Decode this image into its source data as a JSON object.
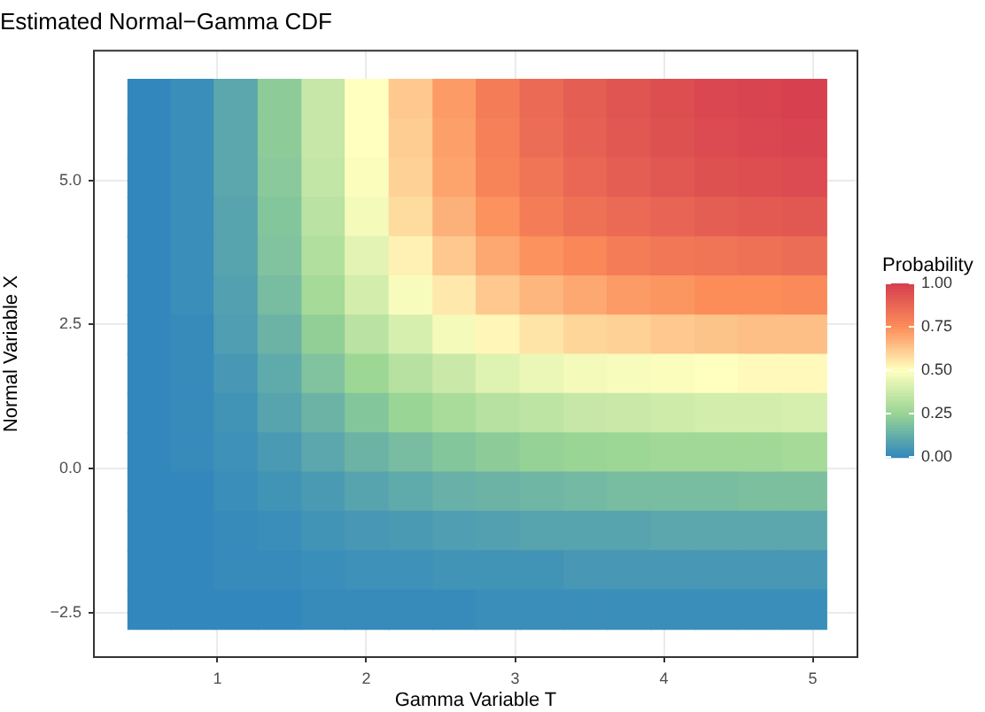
{
  "chart_data": {
    "type": "heatmap",
    "title": "Estimated Normal−Gamma CDF",
    "xlabel": "Gamma Variable T",
    "ylabel": "Normal Variable X",
    "clabel": "Probability",
    "x": [
      0.54,
      0.83,
      1.12,
      1.42,
      1.71,
      2.0,
      2.3,
      2.59,
      2.88,
      3.18,
      3.47,
      3.76,
      4.06,
      4.35,
      4.64,
      4.94
    ],
    "y": [
      6.42,
      5.74,
      5.06,
      4.37,
      3.69,
      3.01,
      2.33,
      1.65,
      0.97,
      0.29,
      -0.39,
      -1.07,
      -1.76,
      -2.44
    ],
    "cells": [
      [
        0,
        0.02,
        0.1,
        0.22,
        0.36,
        0.5,
        0.62,
        0.72,
        0.8,
        0.86,
        0.9,
        0.93,
        0.95,
        0.97,
        0.98,
        0.99
      ],
      [
        0,
        0.02,
        0.1,
        0.22,
        0.36,
        0.5,
        0.61,
        0.71,
        0.79,
        0.85,
        0.89,
        0.92,
        0.94,
        0.96,
        0.97,
        0.98
      ],
      [
        0,
        0.02,
        0.1,
        0.21,
        0.35,
        0.49,
        0.6,
        0.7,
        0.78,
        0.83,
        0.87,
        0.9,
        0.92,
        0.94,
        0.95,
        0.96
      ],
      [
        0,
        0.02,
        0.09,
        0.2,
        0.33,
        0.47,
        0.58,
        0.67,
        0.74,
        0.8,
        0.84,
        0.86,
        0.88,
        0.9,
        0.91,
        0.92
      ],
      [
        0,
        0.02,
        0.09,
        0.19,
        0.31,
        0.43,
        0.53,
        0.62,
        0.69,
        0.74,
        0.77,
        0.8,
        0.82,
        0.83,
        0.84,
        0.85
      ],
      [
        0,
        0.02,
        0.08,
        0.17,
        0.28,
        0.39,
        0.48,
        0.55,
        0.62,
        0.66,
        0.69,
        0.72,
        0.73,
        0.75,
        0.75,
        0.76
      ],
      [
        0,
        0.01,
        0.07,
        0.14,
        0.23,
        0.33,
        0.4,
        0.47,
        0.52,
        0.56,
        0.59,
        0.6,
        0.62,
        0.63,
        0.64,
        0.64
      ],
      [
        0,
        0.01,
        0.05,
        0.11,
        0.19,
        0.26,
        0.32,
        0.37,
        0.42,
        0.45,
        0.47,
        0.48,
        0.49,
        0.5,
        0.51,
        0.51
      ],
      [
        0,
        0.01,
        0.04,
        0.09,
        0.14,
        0.2,
        0.25,
        0.29,
        0.32,
        0.34,
        0.36,
        0.37,
        0.38,
        0.39,
        0.39,
        0.4
      ],
      [
        0,
        0.01,
        0.03,
        0.06,
        0.1,
        0.14,
        0.17,
        0.2,
        0.22,
        0.24,
        0.25,
        0.26,
        0.27,
        0.27,
        0.27,
        0.28
      ],
      [
        0,
        0,
        0.02,
        0.04,
        0.06,
        0.09,
        0.11,
        0.13,
        0.14,
        0.15,
        0.16,
        0.17,
        0.17,
        0.17,
        0.18,
        0.18
      ],
      [
        0,
        0,
        0.01,
        0.02,
        0.04,
        0.05,
        0.06,
        0.07,
        0.08,
        0.09,
        0.09,
        0.09,
        0.1,
        0.1,
        0.1,
        0.1
      ],
      [
        0,
        0,
        0.01,
        0.01,
        0.02,
        0.03,
        0.03,
        0.04,
        0.04,
        0.04,
        0.05,
        0.05,
        0.05,
        0.05,
        0.05,
        0.05
      ],
      [
        0,
        0,
        0,
        0,
        0.01,
        0.01,
        0.01,
        0.01,
        0.02,
        0.02,
        0.02,
        0.02,
        0.02,
        0.02,
        0.02,
        0.02
      ]
    ],
    "xlim": [
      0.17,
      5.3
    ],
    "ylim": [
      -3.27,
      7.25
    ],
    "xticks": [
      1,
      2,
      3,
      4,
      5
    ],
    "yticks": [
      {
        "value": -2.5,
        "label": "−2.5"
      },
      {
        "value": 0,
        "label": "0.0"
      },
      {
        "value": 2.5,
        "label": "2.5"
      },
      {
        "value": 5,
        "label": "5.0"
      }
    ],
    "clim": [
      0,
      1
    ],
    "cticks": [
      {
        "value": 0,
        "label": "0.00"
      },
      {
        "value": 0.25,
        "label": "0.25"
      },
      {
        "value": 0.5,
        "label": "0.50"
      },
      {
        "value": 0.75,
        "label": "0.75"
      },
      {
        "value": 1,
        "label": "1.00"
      }
    ],
    "grid": true
  }
}
